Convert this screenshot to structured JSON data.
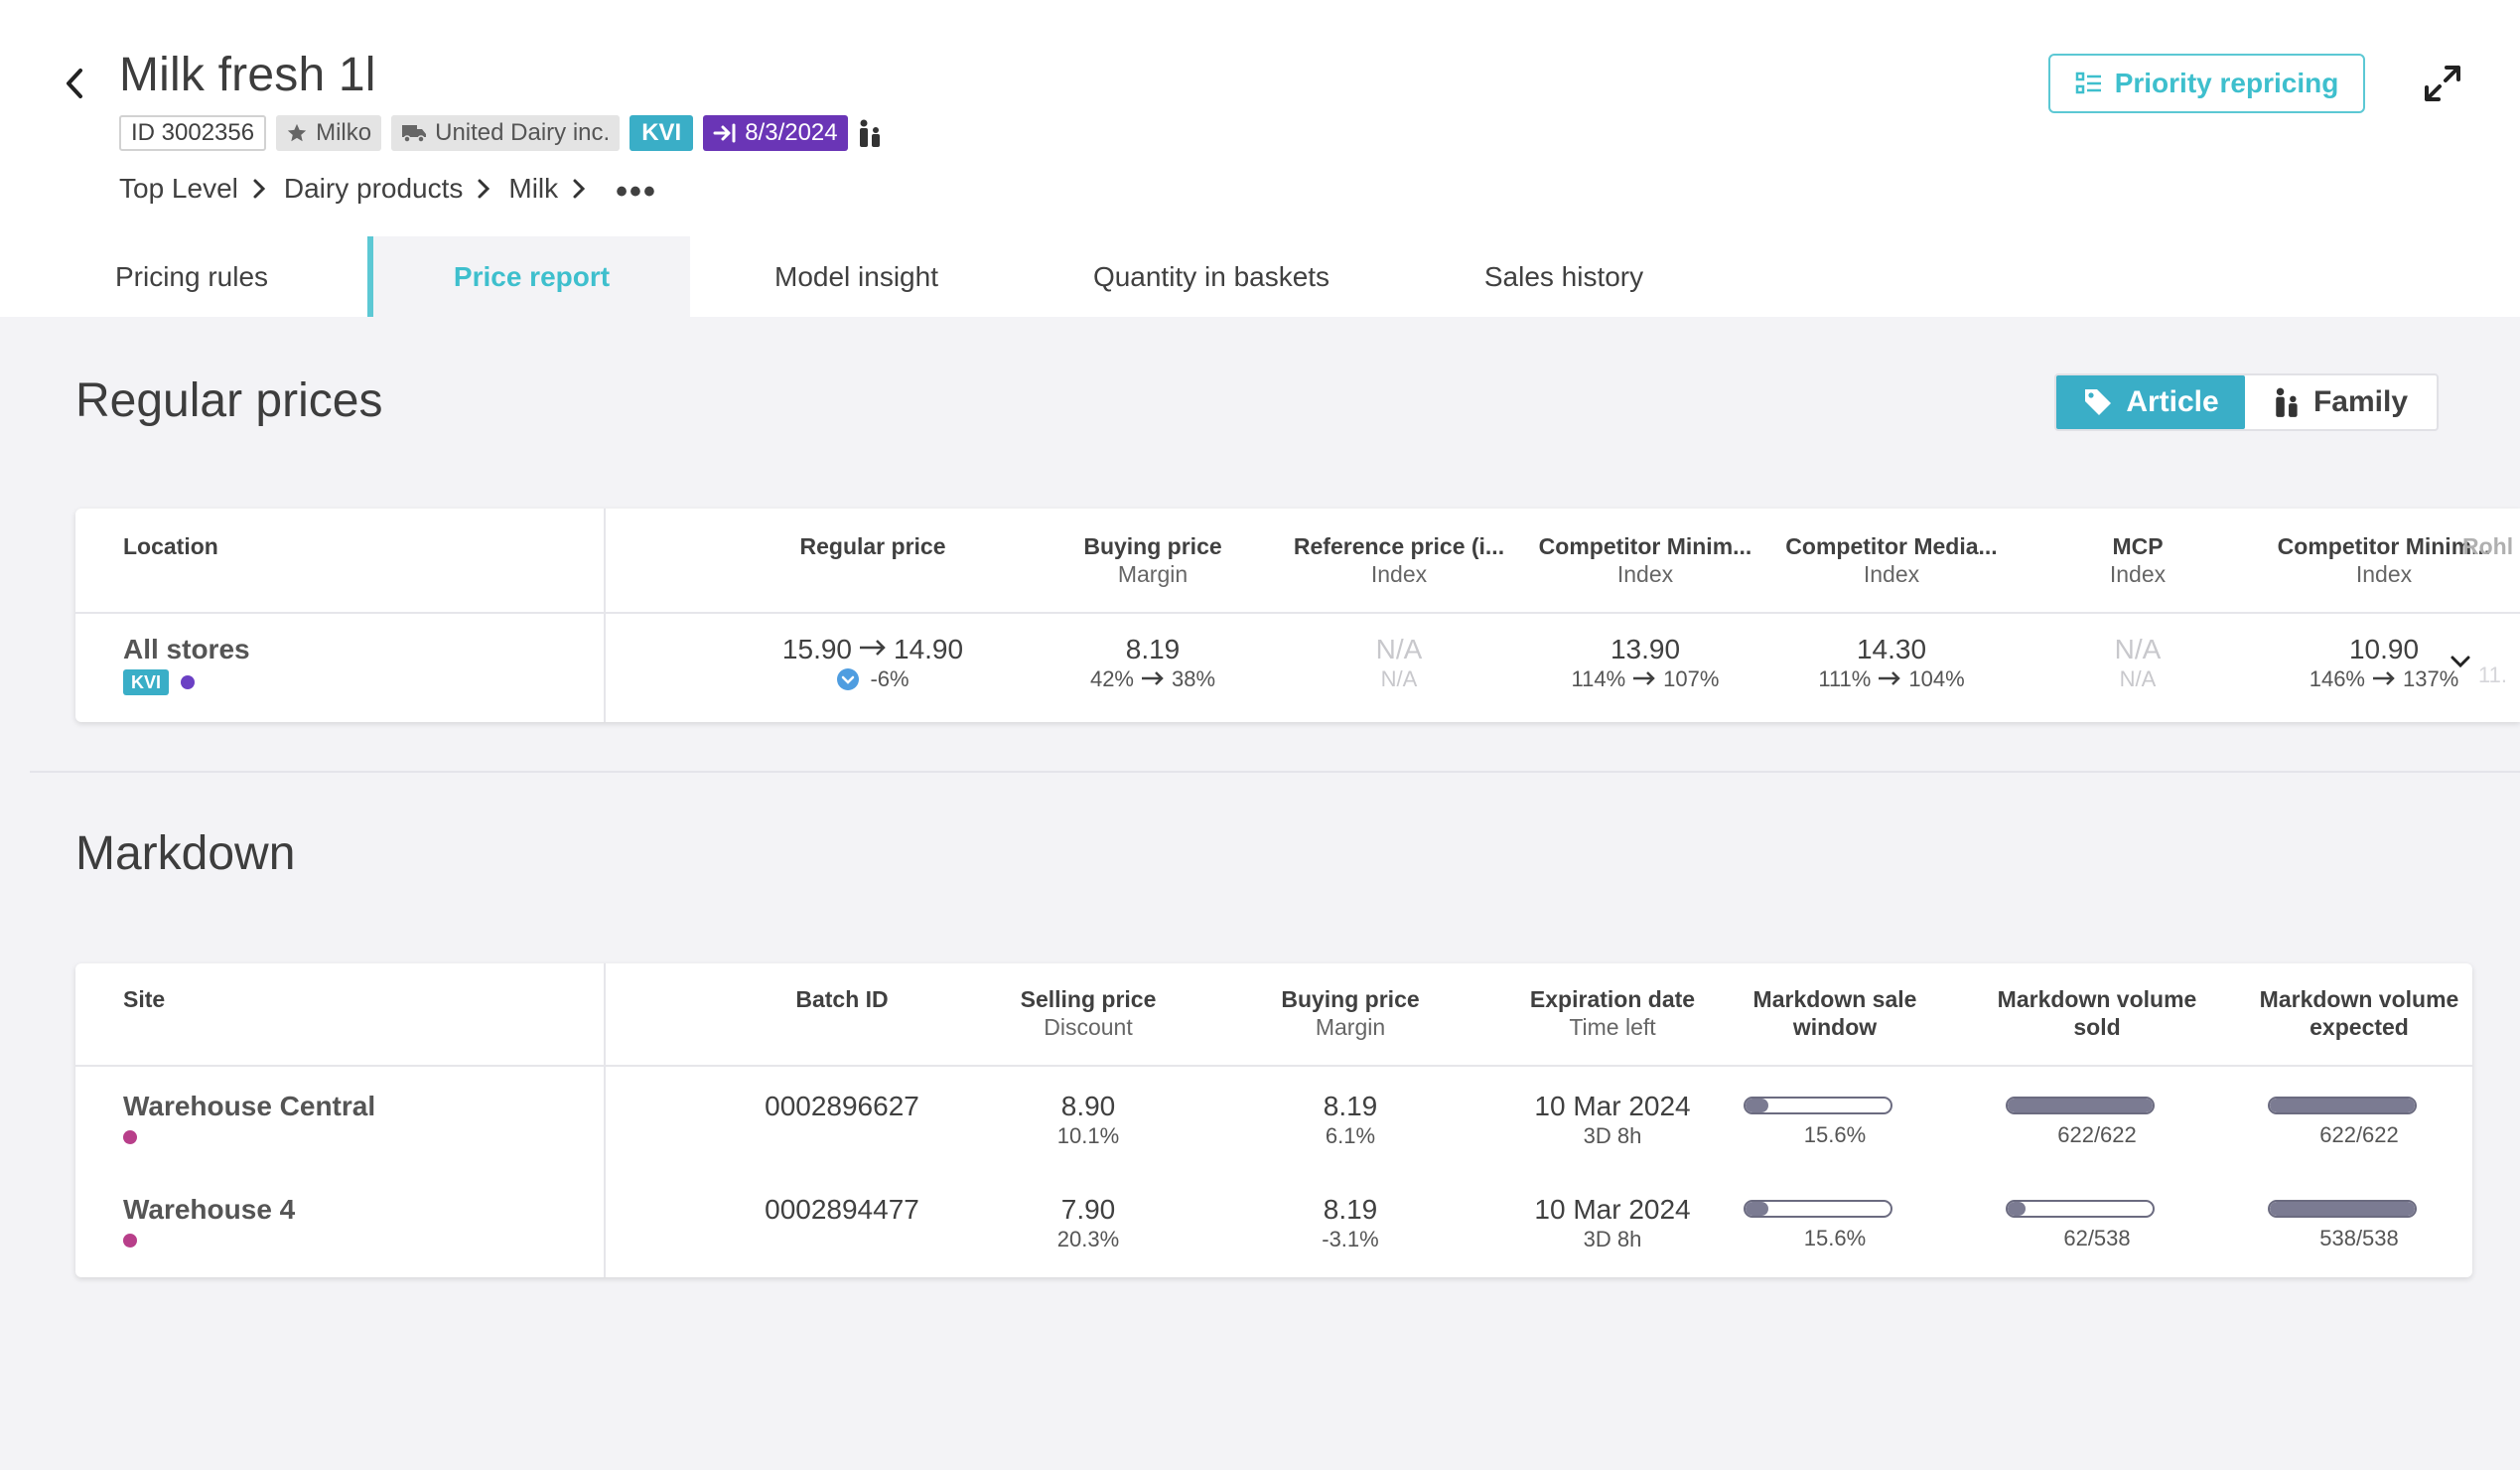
{
  "product": {
    "title": "Milk fresh 1l",
    "id_chip": "ID 3002356",
    "brand_chip": "Milko",
    "supplier_chip": "United Dairy inc.",
    "kvi_chip": "KVI",
    "date_chip": "8/3/2024"
  },
  "breadcrumb": [
    "Top Level",
    "Dairy products",
    "Milk"
  ],
  "priority_button": "Priority repricing",
  "tabs": [
    "Pricing rules",
    "Price report",
    "Model insight",
    "Quantity in baskets",
    "Sales history"
  ],
  "regular": {
    "title": "Regular prices",
    "toggle": {
      "article": "Article",
      "family": "Family"
    },
    "columns": [
      {
        "main": "Location",
        "sub": ""
      },
      {
        "main": "Regular price",
        "sub": ""
      },
      {
        "main": "Buying price",
        "sub": "Margin"
      },
      {
        "main": "Reference price (i...",
        "sub": "Index"
      },
      {
        "main": "Competitor Minim...",
        "sub": "Index"
      },
      {
        "main": "Competitor Media...",
        "sub": "Index"
      },
      {
        "main": "MCP",
        "sub": "Index"
      },
      {
        "main": "Competitor Minim...",
        "sub": "Index"
      },
      {
        "main": "Rohl",
        "sub": ""
      }
    ],
    "row": {
      "location": "All stores",
      "kvi": "KVI",
      "regular_price_from": "15.90",
      "regular_price_to": "14.90",
      "regular_price_change": "-6%",
      "buying_price": "8.19",
      "margin_from": "42%",
      "margin_to": "38%",
      "reference_price": "N/A",
      "reference_index": "N/A",
      "comp_min": "13.90",
      "comp_min_index_from": "114%",
      "comp_min_index_to": "107%",
      "comp_median": "14.30",
      "comp_median_index_from": "111%",
      "comp_median_index_to": "104%",
      "mcp": "N/A",
      "mcp_index": "N/A",
      "comp_min2": "10.90",
      "comp_min2_index_from": "146%",
      "comp_min2_index_to": "137%",
      "rohl_partial": "11."
    }
  },
  "markdown": {
    "title": "Markdown",
    "columns": [
      {
        "main": "Site",
        "sub": ""
      },
      {
        "main": "Batch ID",
        "sub": ""
      },
      {
        "main": "Selling price",
        "sub": "Discount"
      },
      {
        "main": "Buying price",
        "sub": "Margin"
      },
      {
        "main": "Expiration date",
        "sub": "Time left"
      },
      {
        "main": "Markdown sale window",
        "sub": ""
      },
      {
        "main": "Markdown volume sold",
        "sub": ""
      },
      {
        "main": "Markdown volume expected",
        "sub": ""
      }
    ],
    "rows": [
      {
        "site": "Warehouse Central",
        "batch_id": "0002896627",
        "selling_price": "8.90",
        "discount": "10.1%",
        "buying_price": "8.19",
        "margin": "6.1%",
        "expiration": "10 Mar 2024",
        "time_left": "3D 8h",
        "sale_window_label": "15.6%",
        "sale_window_fraction": 0.156,
        "volume_sold_label": "622/622",
        "volume_sold_fraction": 1.0,
        "volume_expected_label": "622/622",
        "volume_expected_fraction": 1.0
      },
      {
        "site": "Warehouse 4",
        "batch_id": "0002894477",
        "selling_price": "7.90",
        "discount": "20.3%",
        "buying_price": "8.19",
        "margin": "-3.1%",
        "expiration": "10 Mar 2024",
        "time_left": "3D 8h",
        "sale_window_label": "15.6%",
        "sale_window_fraction": 0.156,
        "volume_sold_label": "62/538",
        "volume_sold_fraction": 0.115,
        "volume_expected_label": "538/538",
        "volume_expected_fraction": 1.0
      }
    ]
  },
  "colors": {
    "accent": "#3ebfcd",
    "kvi": "#3aaec7",
    "date_chip": "#6a35b6",
    "kvi_dot": "#6b40c4",
    "site_dot": "#b83f8a",
    "bar_fill": "#7b7b92"
  }
}
